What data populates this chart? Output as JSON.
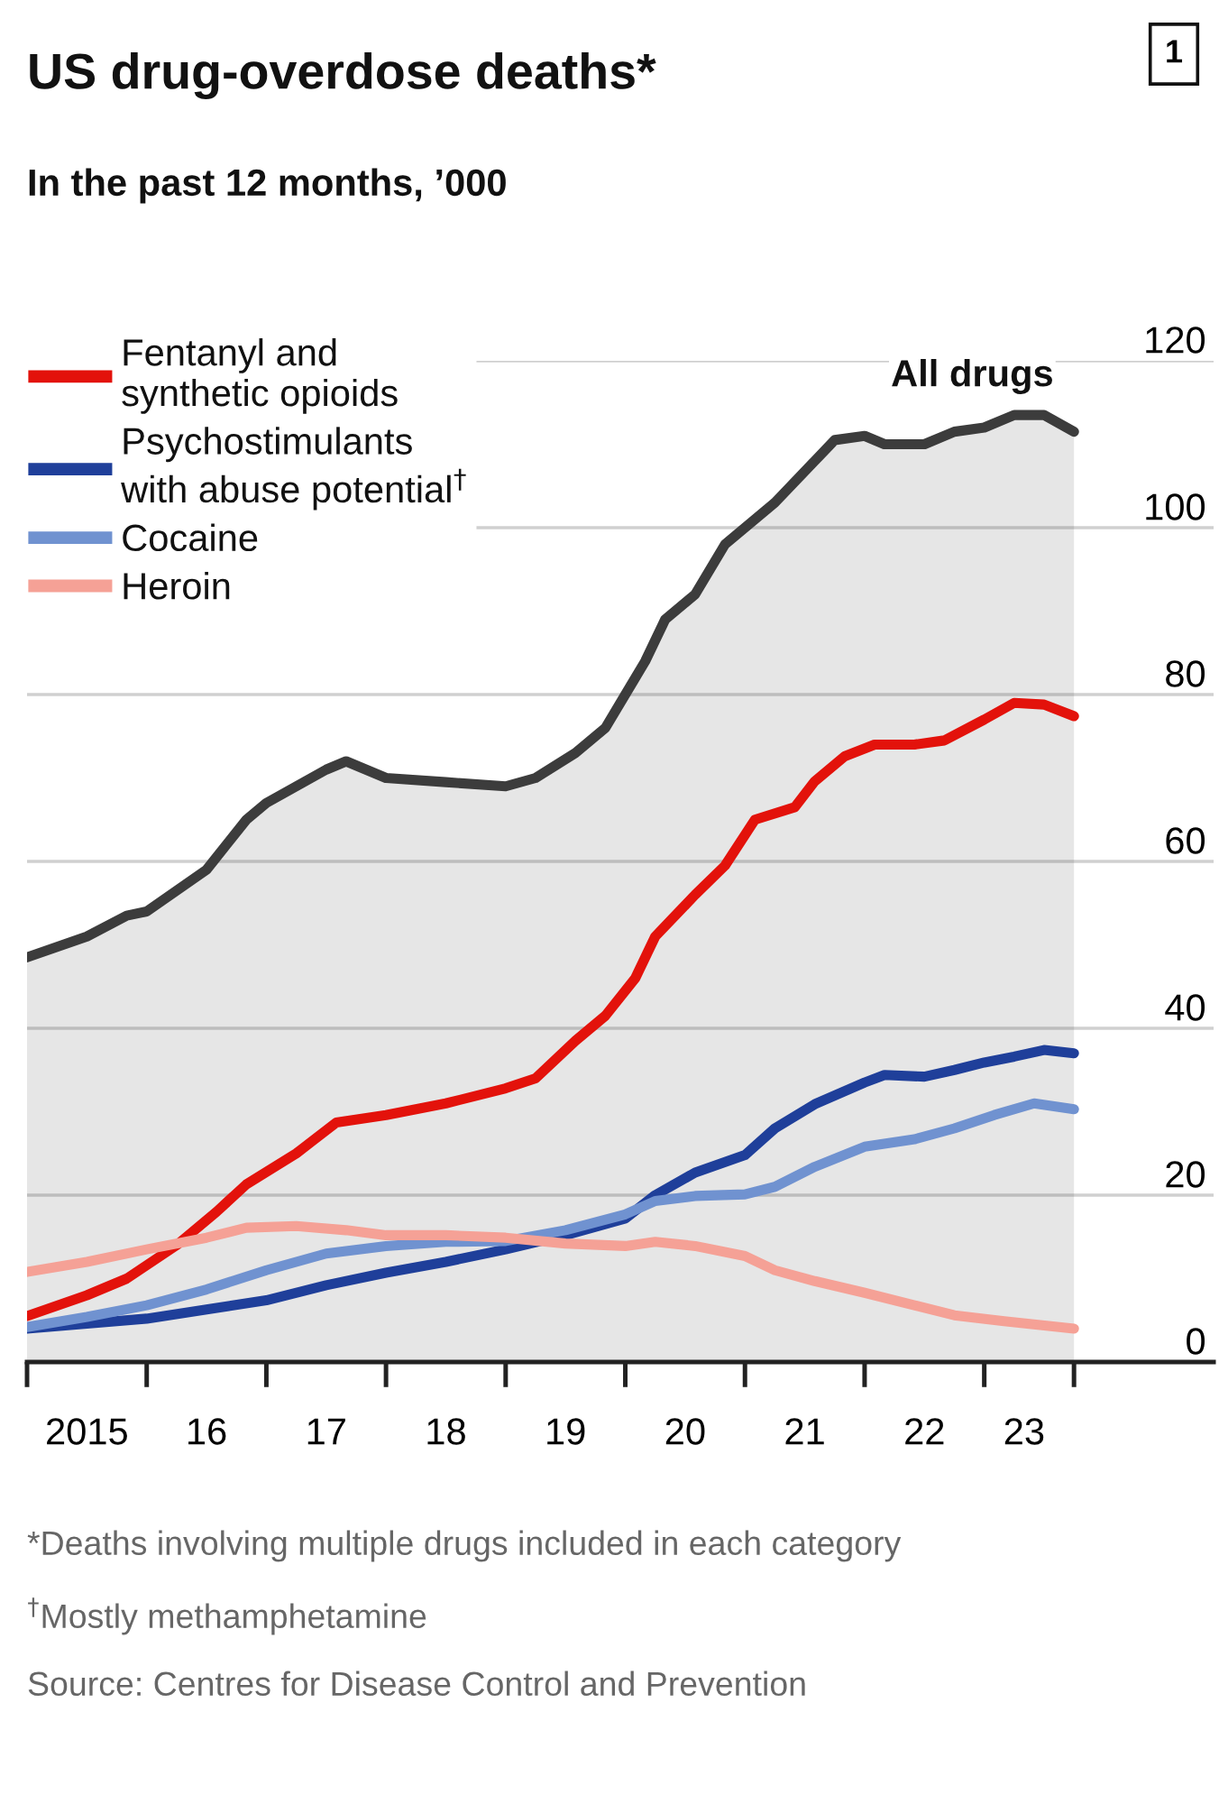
{
  "chart_data": {
    "type": "line",
    "title": "US drug-overdose deaths*",
    "subtitle": "In the past 12 months, ’000",
    "annotations": [
      "1",
      "*Deaths involving multiple drugs included in each category",
      "$^{†}$Mostly methamphetamine",
      "Source: Centres for Disease Control and Prevention"
    ],
    "series": [
      {
        "name": "All drugs",
        "type": "area",
        "color": "#3c3c3c",
        "x": [
          "2015-01",
          "2015-07",
          "2015-11",
          "2016-01",
          "2016-07",
          "2016-11",
          "2017-01",
          "2017-07",
          "2017-09",
          "2018-01",
          "2018-07",
          "2019-01",
          "2019-04",
          "2019-08",
          "2019-11",
          "2020-03",
          "2020-05",
          "2020-08",
          "2020-11",
          "2021-02",
          "2021-04",
          "2021-08",
          "2021-10",
          "2022-01",
          "2022-03",
          "2022-07",
          "2022-10",
          "2023-01",
          "2023-04",
          "2023-07",
          "2023-10"
        ],
        "values": [
          48.5,
          51,
          53.5,
          54,
          59,
          65,
          67,
          71,
          72,
          70,
          69.5,
          69,
          70,
          73,
          76,
          84,
          89,
          92,
          98,
          101,
          103,
          108,
          110.5,
          111,
          110,
          110,
          111.5,
          112,
          113.5,
          113.5,
          111.5
        ]
      },
      {
        "name": "Fentanyl and\nsynthetic opioids",
        "color": "#e3120b",
        "x": [
          "2015-01",
          "2015-07",
          "2015-11",
          "2016-04",
          "2016-08",
          "2016-11",
          "2017-04",
          "2017-08",
          "2018-01",
          "2018-07",
          "2019-01",
          "2019-04",
          "2019-08",
          "2019-11",
          "2020-02",
          "2020-04",
          "2020-08",
          "2020-11",
          "2021-02",
          "2021-06",
          "2021-08",
          "2021-11",
          "2022-02",
          "2022-06",
          "2022-09",
          "2023-01",
          "2023-04",
          "2023-07",
          "2023-10"
        ],
        "values": [
          5.5,
          8,
          10,
          14,
          18,
          21.3,
          25,
          28.7,
          29.6,
          31,
          32.8,
          34,
          38.5,
          41.5,
          46,
          51,
          56,
          59.5,
          65,
          66.5,
          69.6,
          72.6,
          74,
          74,
          74.5,
          77,
          79,
          78.8,
          77.4
        ]
      },
      {
        "name": "Psychostimulants\nwith abuse potential$^{†}$",
        "color": "#1f3f9a",
        "x": [
          "2015-01",
          "2016-01",
          "2016-07",
          "2017-01",
          "2017-07",
          "2018-01",
          "2018-07",
          "2019-01",
          "2019-07",
          "2020-01",
          "2020-04",
          "2020-08",
          "2021-01",
          "2021-04",
          "2021-08",
          "2022-01",
          "2022-03",
          "2022-07",
          "2022-10",
          "2023-01",
          "2023-04",
          "2023-07",
          "2023-10"
        ],
        "values": [
          4,
          5.2,
          6.3,
          7.4,
          9.2,
          10.7,
          12,
          13.5,
          15.2,
          17.2,
          20,
          22.7,
          24.8,
          28,
          30.9,
          33.5,
          34.4,
          34.2,
          35,
          35.9,
          36.6,
          37.4,
          37
        ]
      },
      {
        "name": "Cocaine",
        "color": "#7092d0",
        "x": [
          "2015-01",
          "2015-07",
          "2016-01",
          "2016-07",
          "2017-01",
          "2017-07",
          "2018-01",
          "2018-07",
          "2019-01",
          "2019-07",
          "2020-01",
          "2020-04",
          "2020-08",
          "2021-01",
          "2021-04",
          "2021-08",
          "2022-01",
          "2022-06",
          "2022-10",
          "2023-02",
          "2023-06",
          "2023-10"
        ],
        "values": [
          4.2,
          5.4,
          6.8,
          8.7,
          11,
          13,
          13.9,
          14.4,
          14.5,
          15.8,
          17.7,
          19.3,
          19.9,
          20.1,
          21,
          23.4,
          25.8,
          26.7,
          28,
          29.6,
          31,
          30.3
        ]
      },
      {
        "name": "Heroin",
        "color": "#f5a196",
        "x": [
          "2015-01",
          "2015-07",
          "2016-01",
          "2016-07",
          "2016-11",
          "2017-04",
          "2017-09",
          "2018-01",
          "2018-07",
          "2019-01",
          "2019-07",
          "2020-01",
          "2020-04",
          "2020-08",
          "2021-01",
          "2021-04",
          "2021-08",
          "2022-01",
          "2022-06",
          "2022-10",
          "2023-03",
          "2023-10"
        ],
        "values": [
          10.8,
          12,
          13.5,
          14.9,
          16.1,
          16.3,
          15.8,
          15.2,
          15.2,
          14.9,
          14.2,
          13.9,
          14.4,
          13.9,
          12.7,
          11,
          9.7,
          8.3,
          6.8,
          5.6,
          4.9,
          4
        ]
      }
    ],
    "xlim": [
      "2015-01",
      "2024-12"
    ],
    "xticks": [
      {
        "value": "2015-01",
        "label": null
      },
      {
        "value": "2016-01",
        "label": null
      },
      {
        "value": "2017-01",
        "label": null
      },
      {
        "value": "2018-01",
        "label": null
      },
      {
        "value": "2019-01",
        "label": null
      },
      {
        "value": "2020-01",
        "label": null
      },
      {
        "value": "2021-01",
        "label": null
      },
      {
        "value": "2022-01",
        "label": null
      },
      {
        "value": "2023-01",
        "label": null
      },
      {
        "value": "2023-10",
        "label": null
      },
      {
        "value": "2015-07",
        "label": "2015"
      },
      {
        "value": "2016-07",
        "label": "16"
      },
      {
        "value": "2017-07",
        "label": "17"
      },
      {
        "value": "2018-07",
        "label": "18"
      },
      {
        "value": "2019-07",
        "label": "19"
      },
      {
        "value": "2020-07",
        "label": "20"
      },
      {
        "value": "2021-07",
        "label": "21"
      },
      {
        "value": "2022-07",
        "label": "22"
      },
      {
        "value": "2023-05",
        "label": "23"
      }
    ],
    "ylim": [
      0,
      120
    ],
    "yticks": [
      0,
      20,
      40,
      60,
      80,
      100,
      120
    ],
    "grid": "y",
    "legend": "top left"
  }
}
